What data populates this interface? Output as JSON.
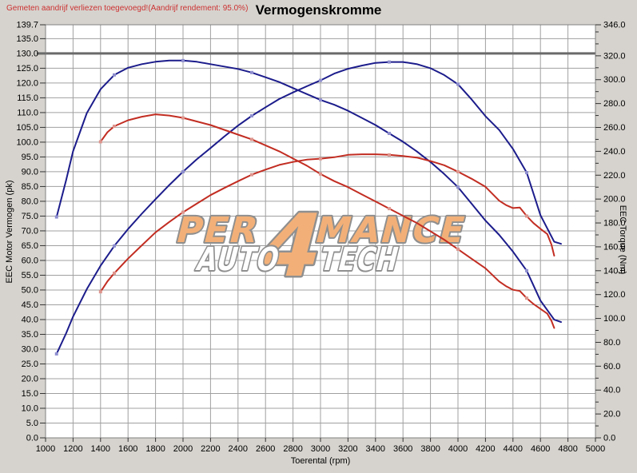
{
  "window": {
    "warning_text": "Gemeten aandrijf verliezen toegevoegd!(Aandrijf rendement: 95.0%)",
    "title_text": "Vermogenskromme"
  },
  "axes": {
    "left_label": "EEC Motor Vermogen (pk)",
    "right_label": "EEC Torque (Nm)",
    "bottom_label": "Toerental (rpm)"
  },
  "watermark": {
    "word_start": "PER",
    "numeral": "4",
    "word_end": "MANCE",
    "line2_left": "AUTO",
    "line2_right": "TECH"
  },
  "colors": {
    "background": "#d6d3ce",
    "plot_background": "#ffffff",
    "grid": "#a0a0a0",
    "frame": "#808080",
    "emphasis_line": "#6a6a6a",
    "tick_text": "#000000",
    "warning_text": "#cc3333",
    "blue_curve": "#1c1c8c",
    "red_curve": "#c22d22",
    "blue_marker": "#8e8ecf",
    "red_marker": "#de958d",
    "watermark_fill": "#f2b078",
    "watermark_outline": "#8f8f8f",
    "watermark_fill2": "#ffffff"
  },
  "chart_data": {
    "type": "line",
    "title": "Vermogenskromme",
    "x_axis": {
      "label": "Toerental (rpm)",
      "min": 1000,
      "max": 5000,
      "tick_step": 200,
      "grid": true
    },
    "y_left": {
      "label": "EEC Motor Vermogen (pk)",
      "min": 0,
      "max": 139.7,
      "tick_step": 5,
      "top_tick": 139.7,
      "emphasis_line": 130,
      "grid": true
    },
    "y_right": {
      "label": "EEC Torque (Nm)",
      "min": 0,
      "max": 346,
      "tick_step": 20,
      "minor_tick_step": 10,
      "top_tick": 346
    },
    "marker_rpms": [
      1500,
      2000,
      2500,
      3000,
      3500,
      4000,
      4500
    ],
    "series": [
      {
        "name": "blue-torque-nm",
        "axis": "right",
        "color_key": "blue_curve",
        "marker_key": "blue_marker",
        "points": [
          [
            1080,
            185
          ],
          [
            1150,
            216
          ],
          [
            1200,
            240
          ],
          [
            1300,
            272
          ],
          [
            1400,
            292
          ],
          [
            1500,
            304
          ],
          [
            1600,
            310
          ],
          [
            1700,
            313
          ],
          [
            1800,
            315
          ],
          [
            1900,
            316
          ],
          [
            2000,
            316
          ],
          [
            2100,
            315
          ],
          [
            2200,
            313
          ],
          [
            2300,
            311
          ],
          [
            2400,
            309
          ],
          [
            2500,
            306
          ],
          [
            2600,
            302
          ],
          [
            2700,
            298
          ],
          [
            2800,
            293
          ],
          [
            2900,
            288
          ],
          [
            3000,
            283
          ],
          [
            3100,
            279
          ],
          [
            3200,
            274
          ],
          [
            3300,
            268
          ],
          [
            3400,
            262
          ],
          [
            3500,
            255
          ],
          [
            3600,
            248
          ],
          [
            3700,
            240
          ],
          [
            3800,
            231
          ],
          [
            3900,
            221
          ],
          [
            4000,
            210
          ],
          [
            4100,
            196
          ],
          [
            4200,
            182
          ],
          [
            4300,
            170
          ],
          [
            4400,
            156
          ],
          [
            4500,
            140
          ],
          [
            4600,
            115
          ],
          [
            4700,
            99
          ],
          [
            4750,
            97
          ]
        ]
      },
      {
        "name": "blue-power-pk",
        "axis": "left",
        "color_key": "blue_curve",
        "marker_key": "blue_marker",
        "points": [
          [
            1080,
            28.4
          ],
          [
            1150,
            35.4
          ],
          [
            1200,
            41.0
          ],
          [
            1300,
            50.3
          ],
          [
            1400,
            58.2
          ],
          [
            1500,
            64.9
          ],
          [
            1600,
            70.6
          ],
          [
            1700,
            75.8
          ],
          [
            1800,
            80.7
          ],
          [
            1900,
            85.5
          ],
          [
            2000,
            90.0
          ],
          [
            2100,
            94.2
          ],
          [
            2200,
            98.0
          ],
          [
            2300,
            101.9
          ],
          [
            2400,
            105.6
          ],
          [
            2500,
            108.9
          ],
          [
            2600,
            111.8
          ],
          [
            2700,
            114.6
          ],
          [
            2800,
            116.8
          ],
          [
            2900,
            118.9
          ],
          [
            3000,
            120.9
          ],
          [
            3100,
            123.2
          ],
          [
            3200,
            124.8
          ],
          [
            3300,
            125.9
          ],
          [
            3400,
            126.8
          ],
          [
            3500,
            127.1
          ],
          [
            3600,
            127.1
          ],
          [
            3700,
            126.4
          ],
          [
            3800,
            125.0
          ],
          [
            3900,
            122.7
          ],
          [
            4000,
            119.6
          ],
          [
            4100,
            114.4
          ],
          [
            4200,
            108.8
          ],
          [
            4300,
            104.1
          ],
          [
            4400,
            97.7
          ],
          [
            4500,
            89.7
          ],
          [
            4600,
            75.3
          ],
          [
            4700,
            66.3
          ],
          [
            4750,
            65.6
          ]
        ]
      },
      {
        "name": "red-torque-nm",
        "axis": "right",
        "color_key": "red_curve",
        "marker_key": "red_marker",
        "points": [
          [
            1400,
            248
          ],
          [
            1450,
            256
          ],
          [
            1500,
            261
          ],
          [
            1600,
            266
          ],
          [
            1700,
            269
          ],
          [
            1800,
            271
          ],
          [
            1900,
            270
          ],
          [
            2000,
            268
          ],
          [
            2100,
            265
          ],
          [
            2200,
            262
          ],
          [
            2300,
            258
          ],
          [
            2400,
            254
          ],
          [
            2500,
            250
          ],
          [
            2600,
            245
          ],
          [
            2700,
            240
          ],
          [
            2800,
            234
          ],
          [
            2900,
            228
          ],
          [
            3000,
            221
          ],
          [
            3100,
            215
          ],
          [
            3200,
            210
          ],
          [
            3300,
            204
          ],
          [
            3400,
            198
          ],
          [
            3500,
            192
          ],
          [
            3600,
            186
          ],
          [
            3700,
            180
          ],
          [
            3800,
            173
          ],
          [
            3900,
            166
          ],
          [
            4000,
            158
          ],
          [
            4100,
            150
          ],
          [
            4200,
            142
          ],
          [
            4300,
            131
          ],
          [
            4350,
            127
          ],
          [
            4400,
            124
          ],
          [
            4450,
            123
          ],
          [
            4500,
            117
          ],
          [
            4550,
            112
          ],
          [
            4600,
            108
          ],
          [
            4650,
            104
          ],
          [
            4680,
            98
          ],
          [
            4700,
            92
          ]
        ]
      },
      {
        "name": "red-power-pk",
        "axis": "left",
        "color_key": "red_curve",
        "marker_key": "red_marker",
        "points": [
          [
            1400,
            49.4
          ],
          [
            1450,
            52.9
          ],
          [
            1500,
            55.7
          ],
          [
            1600,
            60.6
          ],
          [
            1700,
            65.1
          ],
          [
            1800,
            69.5
          ],
          [
            1900,
            73.0
          ],
          [
            2000,
            76.3
          ],
          [
            2100,
            79.2
          ],
          [
            2200,
            82.1
          ],
          [
            2300,
            84.5
          ],
          [
            2400,
            86.8
          ],
          [
            2500,
            89.0
          ],
          [
            2600,
            90.7
          ],
          [
            2700,
            92.3
          ],
          [
            2800,
            93.3
          ],
          [
            2900,
            94.1
          ],
          [
            3000,
            94.4
          ],
          [
            3100,
            94.9
          ],
          [
            3200,
            95.7
          ],
          [
            3300,
            95.9
          ],
          [
            3400,
            95.9
          ],
          [
            3500,
            95.7
          ],
          [
            3600,
            95.3
          ],
          [
            3700,
            94.8
          ],
          [
            3800,
            93.6
          ],
          [
            3900,
            92.2
          ],
          [
            4000,
            90.0
          ],
          [
            4100,
            87.6
          ],
          [
            4200,
            84.9
          ],
          [
            4300,
            80.2
          ],
          [
            4350,
            78.7
          ],
          [
            4400,
            77.7
          ],
          [
            4450,
            77.9
          ],
          [
            4500,
            75.0
          ],
          [
            4550,
            72.6
          ],
          [
            4600,
            70.7
          ],
          [
            4650,
            68.9
          ],
          [
            4680,
            65.3
          ],
          [
            4700,
            61.6
          ]
        ]
      }
    ]
  }
}
